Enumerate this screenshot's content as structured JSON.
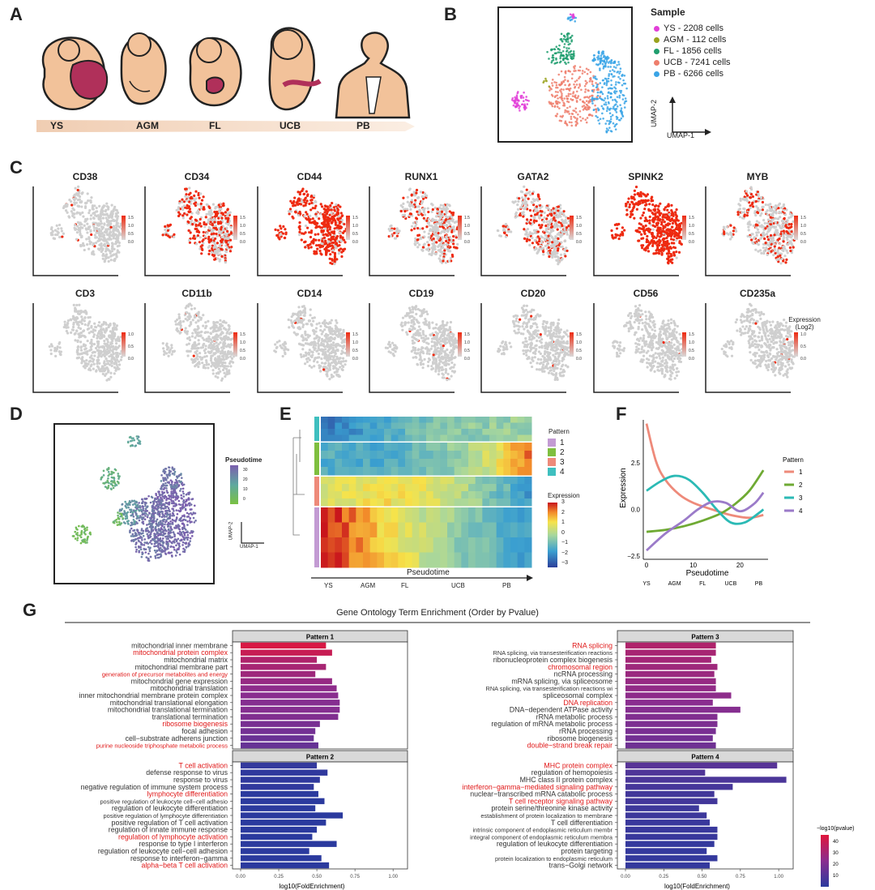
{
  "panels": {
    "A": "A",
    "B": "B",
    "C": "C",
    "D": "D",
    "E": "E",
    "F": "F",
    "G": "G"
  },
  "panel_a": {
    "stages": [
      "YS",
      "AGM",
      "FL",
      "UCB",
      "PB"
    ],
    "colors": {
      "skin": "#f2c29a",
      "outline": "#222222",
      "organ": "#b0305a",
      "bar": "#f3d9c6"
    }
  },
  "panel_b": {
    "legend_title": "Sample",
    "legend": [
      {
        "label": "YS - 2208 cells",
        "color": "#e23fd8"
      },
      {
        "label": "AGM - 112 cells",
        "color": "#9aa31e"
      },
      {
        "label": "FL - 1856 cells",
        "color": "#1f9e6e"
      },
      {
        "label": "UCB - 7241 cells",
        "color": "#ee7e6c"
      },
      {
        "label": "PB - 6266 cells",
        "color": "#3aa4e6"
      }
    ],
    "axis_x": "UMAP-1",
    "axis_y": "UMAP-2"
  },
  "panel_c": {
    "genes_row1": [
      "CD38",
      "CD34",
      "CD44",
      "RUNX1",
      "GATA2",
      "SPINK2",
      "MYB"
    ],
    "genes_row2": [
      "CD3",
      "CD11b",
      "CD14",
      "CD19",
      "CD20",
      "CD56",
      "CD235a"
    ],
    "scale_ticks_15": [
      "1.5",
      "1.0",
      "0.5",
      "0.0"
    ],
    "scale_ticks_10": [
      "1.0",
      "0.5",
      "0.0"
    ],
    "legend_title_1": "Expression",
    "legend_title_2": "(Log2)",
    "levels_row1": [
      0.03,
      0.55,
      0.85,
      0.3,
      0.3,
      0.97,
      0.3
    ],
    "levels_row2": [
      0.0,
      0.01,
      0.01,
      0.01,
      0.01,
      0.01,
      0.01
    ],
    "colors": {
      "low": "#cfcfcf",
      "high": "#ee2a10"
    }
  },
  "panel_d": {
    "legend_title": "Pseudotime",
    "ticks": [
      "30",
      "20",
      "10",
      "0"
    ],
    "axis_x": "UMAP-1",
    "axis_y": "UMAP-2"
  },
  "panel_e": {
    "pattern_title": "Pattern",
    "patterns": [
      {
        "label": "1",
        "color": "#c39bd3"
      },
      {
        "label": "2",
        "color": "#7fbf3f"
      },
      {
        "label": "3",
        "color": "#ee8a7a"
      },
      {
        "label": "4",
        "color": "#3fbfbf"
      }
    ],
    "expr_title": "Expression",
    "expr_ticks": [
      "3",
      "2",
      "1",
      "0",
      "−1",
      "−2",
      "−3"
    ],
    "xlabel": "Pseudotime",
    "stages": [
      "YS",
      "AGM",
      "FL",
      "UCB",
      "PB"
    ]
  },
  "panel_g": {
    "title": "Gene Ontology Term Enrichment (Order by Pvalue)",
    "xlabel": "log10(FoldEnrichment)",
    "xticks": [
      "0.00",
      "0.25",
      "0.50",
      "0.75",
      "1.00"
    ],
    "legend_title": "−log10(pvalue)",
    "legend_ticks": [
      "40",
      "30",
      "20",
      "10"
    ]
  },
  "chart_data": [
    {
      "type": "line",
      "panel": "F",
      "title": "",
      "xlabel": "Pseudotime",
      "ylabel": "Expression",
      "xlim": [
        0,
        26
      ],
      "ylim": [
        -2.5,
        4.8
      ],
      "xticks": [
        "0",
        "10",
        "20"
      ],
      "yticks": [
        "2.5",
        "0.0",
        "−2.5"
      ],
      "stages": [
        "YS",
        "AGM",
        "FL",
        "UCB",
        "PB"
      ],
      "legend_title": "Pattern",
      "series": [
        {
          "name": "1",
          "color": "#ee8a7a",
          "x": [
            0,
            2,
            4,
            7,
            10,
            14,
            18,
            22,
            25
          ],
          "y": [
            4.6,
            2.6,
            1.6,
            0.8,
            0.35,
            0.0,
            -0.3,
            -0.45,
            -0.3
          ]
        },
        {
          "name": "2",
          "color": "#6faa34",
          "x": [
            0,
            4,
            8,
            12,
            16,
            19,
            22,
            25
          ],
          "y": [
            -1.2,
            -1.1,
            -0.9,
            -0.6,
            -0.2,
            0.3,
            1.0,
            2.1
          ]
        },
        {
          "name": "3",
          "color": "#2bbab5",
          "x": [
            0,
            3,
            6,
            9,
            12,
            15,
            18,
            21,
            24,
            25
          ],
          "y": [
            1.0,
            1.5,
            1.8,
            1.6,
            0.9,
            0.0,
            -0.7,
            -0.7,
            -0.2,
            0.0
          ]
        },
        {
          "name": "4",
          "color": "#9b7bc9",
          "x": [
            0,
            4,
            8,
            11,
            14,
            17,
            20,
            23,
            25
          ],
          "y": [
            -2.2,
            -1.3,
            -0.6,
            0.0,
            0.4,
            0.35,
            -0.1,
            0.3,
            0.9
          ]
        }
      ]
    },
    {
      "type": "bar",
      "panel": "G",
      "orientation": "horizontal",
      "title": "Pattern 1",
      "xlim": [
        0,
        1.05
      ],
      "categories": [
        "mitochondrial inner membrane",
        "mitochondrial protein complex",
        "mitochondrial matrix",
        "mitochondrial membrane part",
        "generation of precursor metabolites and energy",
        "mitochondrial gene expression",
        "mitochondrial translation",
        "inner mitochondrial membrane protein complex",
        "mitochondrial translational elongation",
        "mitochondrial translational termination",
        "translational termination",
        "ribosome biogenesis",
        "focal adhesion",
        "cell−substrate adherens junction",
        "purine nucleoside triphosphate metabolic process"
      ],
      "highlighted": [
        false,
        true,
        false,
        false,
        true,
        false,
        false,
        false,
        false,
        false,
        false,
        true,
        false,
        false,
        true
      ],
      "values": [
        0.56,
        0.6,
        0.5,
        0.56,
        0.49,
        0.6,
        0.63,
        0.64,
        0.65,
        0.65,
        0.64,
        0.52,
        0.49,
        0.48,
        0.51
      ],
      "neglog10_pvalue": [
        48,
        44,
        38,
        36,
        34,
        32,
        30,
        29,
        28,
        28,
        27,
        25,
        24,
        22,
        21
      ]
    },
    {
      "type": "bar",
      "panel": "G",
      "orientation": "horizontal",
      "title": "Pattern 2",
      "xlim": [
        0,
        1.05
      ],
      "categories": [
        "T cell activation",
        "defense response to virus",
        "response to virus",
        "negative regulation of immune system process",
        "lymphocyte differentiation",
        "positive regulation of leukocyte cell−cell adhesio",
        "regulation of leukocyte differentiation",
        "positive regulation of lymphocyte differentiation",
        "positive regulation of T cell activation",
        "regulation of innate immune response",
        "regulation of lymphocyte activation",
        "response to type I interferon",
        "regulation of leukocyte cell−cell adhesion",
        "response to interferon−gamma",
        "alpha−beta T cell activation"
      ],
      "highlighted": [
        true,
        false,
        false,
        false,
        true,
        false,
        false,
        false,
        false,
        false,
        true,
        false,
        false,
        false,
        true
      ],
      "values": [
        0.5,
        0.57,
        0.52,
        0.48,
        0.51,
        0.55,
        0.49,
        0.67,
        0.56,
        0.5,
        0.47,
        0.63,
        0.45,
        0.53,
        0.58
      ],
      "neglog10_pvalue": [
        10,
        9,
        9,
        9,
        8,
        8,
        8,
        8,
        8,
        8,
        8,
        8,
        8,
        8,
        8
      ]
    },
    {
      "type": "bar",
      "panel": "G",
      "orientation": "horizontal",
      "title": "Pattern 3",
      "xlim": [
        0,
        1.05
      ],
      "categories": [
        "RNA splicing",
        "RNA splicing, via transesterification reactions",
        "ribonucleoprotein complex biogenesis",
        "chromosomal region",
        "ncRNA processing",
        "mRNA splicing, via spliceosome",
        "RNA splicing, via transesterification reactions wi",
        "spliceosomal complex",
        "DNA replication",
        "DNA−dependent ATPase activity",
        "rRNA metabolic process",
        "regulation of mRNA metabolic process",
        "rRNA processing",
        "ribosome biogenesis",
        "double−strand break repair"
      ],
      "highlighted": [
        true,
        false,
        false,
        true,
        false,
        false,
        false,
        false,
        true,
        false,
        false,
        false,
        false,
        false,
        true
      ],
      "values": [
        0.59,
        0.59,
        0.56,
        0.6,
        0.58,
        0.59,
        0.59,
        0.69,
        0.57,
        0.75,
        0.6,
        0.6,
        0.59,
        0.57,
        0.59
      ],
      "neglog10_pvalue": [
        38,
        36,
        35,
        34,
        33,
        32,
        31,
        30,
        29,
        28,
        27,
        26,
        25,
        24,
        23
      ]
    },
    {
      "type": "bar",
      "panel": "G",
      "orientation": "horizontal",
      "title": "Pattern 4",
      "xlim": [
        0,
        1.05
      ],
      "categories": [
        "MHC protein complex",
        "regulation of hemopoiesis",
        "MHC class II protein complex",
        "interferon−gamma−mediated signaling pathway",
        "nuclear−transcribed mRNA catabolic process",
        "T cell receptor signaling pathway",
        "protein serine/threonine kinase activity",
        "establishment of protein localization to membrane",
        "T cell differentiation",
        "intrinsic component of endoplasmic reticulum membr",
        "integral component of endoplasmic reticulum membra",
        "regulation of leukocyte differentiation",
        "protein targeting",
        "protein localization to endoplasmic reticulum",
        "trans−Golgi network"
      ],
      "highlighted": [
        true,
        false,
        false,
        true,
        false,
        true,
        false,
        false,
        false,
        false,
        false,
        false,
        false,
        false,
        false
      ],
      "values": [
        0.99,
        0.52,
        1.05,
        0.7,
        0.58,
        0.6,
        0.48,
        0.53,
        0.55,
        0.6,
        0.6,
        0.58,
        0.53,
        0.6,
        0.55
      ],
      "neglog10_pvalue": [
        18,
        16,
        15,
        14,
        13,
        13,
        12,
        12,
        11,
        11,
        11,
        10,
        10,
        10,
        10
      ]
    }
  ]
}
